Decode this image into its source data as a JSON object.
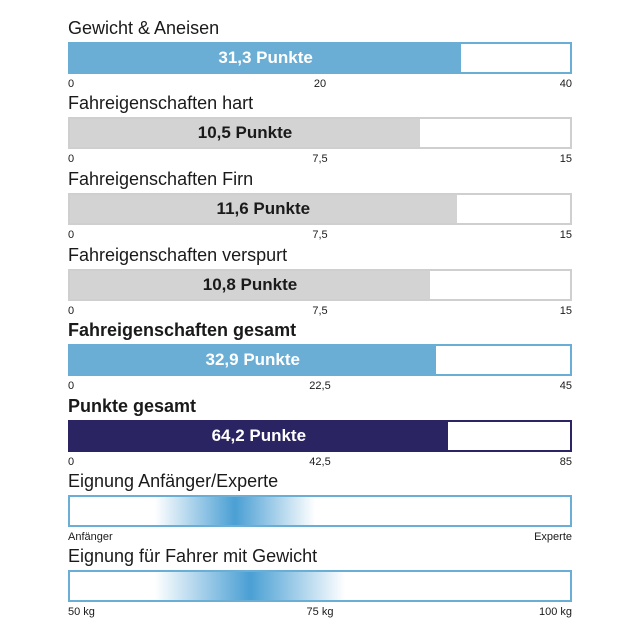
{
  "chart_data": [
    {
      "type": "bar",
      "title": "Gewicht & Aneisen",
      "value": 31.3,
      "value_label": "31,3 Punkte",
      "xlim": [
        0,
        40
      ],
      "ticks": [
        "0",
        "20",
        "40"
      ],
      "color": "#6aaed6"
    },
    {
      "type": "bar",
      "title": "Fahreigenschaften hart",
      "value": 10.5,
      "value_label": "10,5 Punkte",
      "xlim": [
        0,
        15
      ],
      "ticks": [
        "0",
        "7,5",
        "15"
      ],
      "color": "#d3d3d3"
    },
    {
      "type": "bar",
      "title": "Fahreigenschaften Firn",
      "value": 11.6,
      "value_label": "11,6 Punkte",
      "xlim": [
        0,
        15
      ],
      "ticks": [
        "0",
        "7,5",
        "15"
      ],
      "color": "#d3d3d3"
    },
    {
      "type": "bar",
      "title": "Fahreigenschaften verspurt",
      "value": 10.8,
      "value_label": "10,8 Punkte",
      "xlim": [
        0,
        15
      ],
      "ticks": [
        "0",
        "7,5",
        "15"
      ],
      "color": "#d3d3d3"
    },
    {
      "type": "bar",
      "title": "Fahreigenschaften gesamt",
      "value": 32.9,
      "value_label": "32,9 Punkte",
      "xlim": [
        0,
        45
      ],
      "ticks": [
        "0",
        "22,5",
        "45"
      ],
      "color": "#6aaed6"
    },
    {
      "type": "bar",
      "title": "Punkte gesamt",
      "value": 64.2,
      "value_label": "64,2 Punkte",
      "xlim": [
        0,
        85
      ],
      "ticks": [
        "0",
        "42,5",
        "85"
      ],
      "color": "#2b2463"
    },
    {
      "type": "heatmap",
      "title": "Eignung Anfänger/Experte",
      "peak": 0.33,
      "spread": 0.16,
      "ticks": [
        "Anfänger",
        "",
        "Experte"
      ],
      "color": "#4a9fd4"
    },
    {
      "type": "heatmap",
      "title": "Eignung für Fahrer mit Gewicht",
      "peak": 0.36,
      "spread": 0.19,
      "ticks": [
        "50 kg",
        "75 kg",
        "100 kg"
      ],
      "color": "#4a9fd4"
    }
  ]
}
